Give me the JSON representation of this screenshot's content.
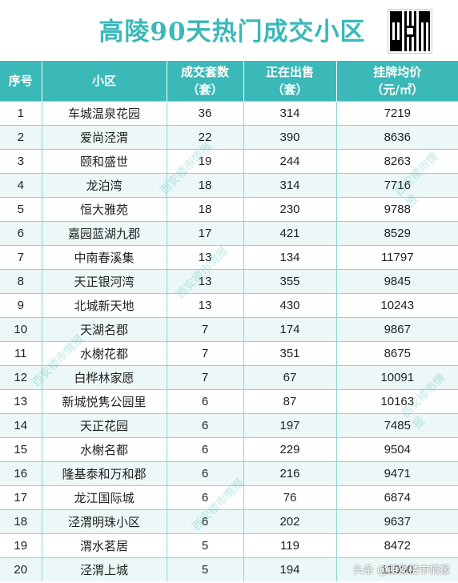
{
  "title": "高陵90天热门成交小区",
  "columns": [
    "序号",
    "小区",
    "成交套数\n（套）",
    "正在出售\n（套）",
    "挂牌均价\n（元/㎡）"
  ],
  "header": {
    "no": "序号",
    "name": "小区",
    "sold_1": "成交套数",
    "sold_2": "（套）",
    "selling_1": "正在出售",
    "selling_2": "（套）",
    "price_1": "挂牌均价",
    "price_2": "（元/㎡）"
  },
  "rows": [
    [
      "1",
      "车城温泉花园",
      "36",
      "314",
      "7219"
    ],
    [
      "2",
      "爱尚泾渭",
      "22",
      "390",
      "8636"
    ],
    [
      "3",
      "颐和盛世",
      "19",
      "244",
      "8263"
    ],
    [
      "4",
      "龙泊湾",
      "18",
      "314",
      "7716"
    ],
    [
      "5",
      "恒大雅苑",
      "18",
      "230",
      "9788"
    ],
    [
      "6",
      "嘉园蓝湖九郡",
      "17",
      "421",
      "8529"
    ],
    [
      "7",
      "中南春溪集",
      "13",
      "134",
      "11797"
    ],
    [
      "8",
      "天正银河湾",
      "13",
      "355",
      "9845"
    ],
    [
      "9",
      "北城新天地",
      "13",
      "430",
      "10243"
    ],
    [
      "10",
      "天湖名郡",
      "7",
      "174",
      "9867"
    ],
    [
      "11",
      "水榭花都",
      "7",
      "351",
      "8675"
    ],
    [
      "12",
      "白桦林家愿",
      "7",
      "67",
      "10091"
    ],
    [
      "13",
      "新城悦隽公园里",
      "6",
      "87",
      "10163"
    ],
    [
      "14",
      "天正花园",
      "6",
      "197",
      "7485"
    ],
    [
      "15",
      "水榭名都",
      "6",
      "229",
      "9504"
    ],
    [
      "16",
      "隆基泰和万和郡",
      "6",
      "216",
      "9471"
    ],
    [
      "17",
      "龙江国际城",
      "6",
      "76",
      "6874"
    ],
    [
      "18",
      "泾渭明珠小区",
      "6",
      "202",
      "9637"
    ],
    [
      "19",
      "渭水茗居",
      "5",
      "119",
      "8472"
    ],
    [
      "20",
      "泾渭上城",
      "5",
      "194",
      "11050"
    ]
  ],
  "watermark": "西安楼市情报",
  "credit": "头条 @西安楼市情报",
  "accent_color": "#3bb8b8"
}
